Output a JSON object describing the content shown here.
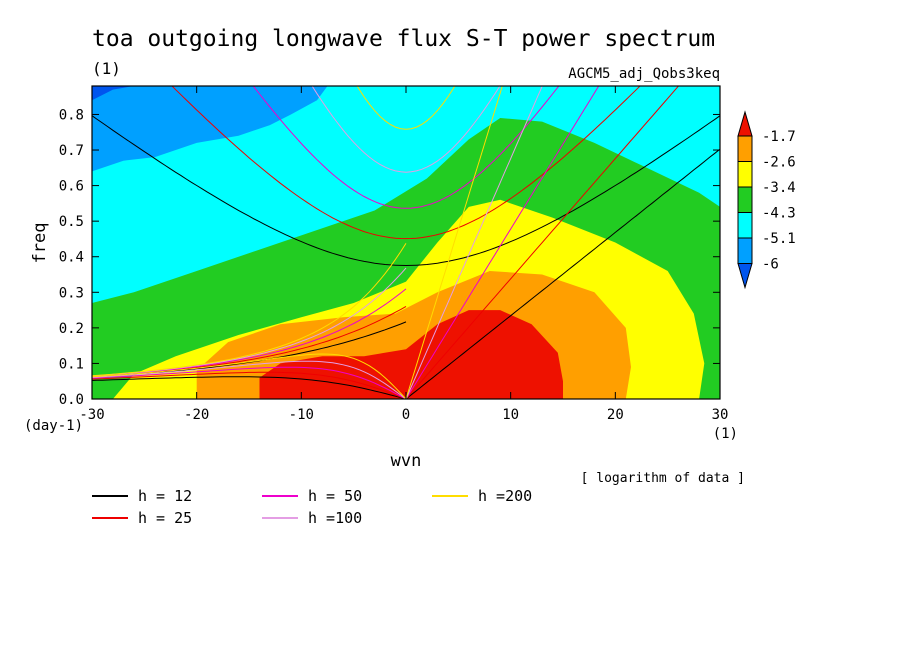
{
  "chart_data": {
    "type": "heatmap",
    "title": "toa outgoing longwave flux S-T power spectrum",
    "title_units": "(1)",
    "subtitle_right": "AGCM5_adj_Qobs3keq",
    "xlabel": "wvn",
    "ylabel": "freq",
    "x_unit_label": "(1)",
    "y_unit_label": "(day-1)",
    "xlim": [
      -30,
      30
    ],
    "ylim": [
      0,
      0.88
    ],
    "x_ticks": [
      -30,
      -20,
      -10,
      0,
      10,
      20,
      30
    ],
    "x_tick_labels": [
      "-30",
      "-20",
      "-10",
      "0",
      "10",
      "20",
      "30"
    ],
    "y_ticks": [
      0.0,
      0.1,
      0.2,
      0.3,
      0.4,
      0.5,
      0.6,
      0.7,
      0.8
    ],
    "y_tick_labels": [
      "0.0",
      "0.1",
      "0.2",
      "0.3",
      "0.4",
      "0.5",
      "0.6",
      "0.7",
      "0.8"
    ],
    "colorbar": {
      "levels": [
        "-1.7",
        "-2.6",
        "-3.4",
        "-4.3",
        "-5.1",
        "-6"
      ],
      "colors": [
        "#ee1100",
        "#ff9f00",
        "#ffff00",
        "#22cc22",
        "#00ffff",
        "#00a0ff",
        "#0055ee"
      ],
      "note": "[ logarithm of data ]"
    },
    "regions": [
      {
        "level": "> -4.3",
        "color": "#22cc22",
        "boundary": [
          [
            -30,
            0.27
          ],
          [
            -26,
            0.3
          ],
          [
            -20,
            0.36
          ],
          [
            -14,
            0.42
          ],
          [
            -8,
            0.48
          ],
          [
            -3,
            0.53
          ],
          [
            2,
            0.62
          ],
          [
            6,
            0.73
          ],
          [
            9,
            0.79
          ],
          [
            13,
            0.78
          ],
          [
            18,
            0.72
          ],
          [
            23,
            0.65
          ],
          [
            28,
            0.58
          ],
          [
            30,
            0.54
          ],
          [
            30,
            0
          ],
          [
            -30,
            0
          ]
        ]
      },
      {
        "level": "> -3.4",
        "color": "#ffff00",
        "boundary": [
          [
            -30,
            0.04
          ],
          [
            -28,
            0.0
          ],
          [
            -30,
            0.0
          ]
        ],
        "boundary_main": [
          [
            -28,
            0
          ],
          [
            -26,
            0.07
          ],
          [
            -22,
            0.12
          ],
          [
            -16,
            0.18
          ],
          [
            -10,
            0.23
          ],
          [
            -5,
            0.27
          ],
          [
            0,
            0.33
          ],
          [
            3,
            0.44
          ],
          [
            6,
            0.54
          ],
          [
            9,
            0.56
          ],
          [
            14,
            0.51
          ],
          [
            20,
            0.44
          ],
          [
            25,
            0.36
          ],
          [
            27.5,
            0.24
          ],
          [
            28.5,
            0.1
          ],
          [
            28,
            0
          ]
        ]
      },
      {
        "level": "> -2.6",
        "color": "#ff9f00",
        "boundary": [
          [
            -20,
            0
          ],
          [
            -20,
            0.08
          ],
          [
            -17,
            0.16
          ],
          [
            -12,
            0.21
          ],
          [
            -6,
            0.23
          ],
          [
            -1,
            0.24
          ],
          [
            3,
            0.3
          ],
          [
            8,
            0.36
          ],
          [
            13,
            0.35
          ],
          [
            18,
            0.3
          ],
          [
            21,
            0.2
          ],
          [
            21.5,
            0.09
          ],
          [
            21,
            0
          ]
        ]
      },
      {
        "level": "> -1.7",
        "color": "#ee1100",
        "boundary": [
          [
            -14,
            0
          ],
          [
            -14,
            0.06
          ],
          [
            -12,
            0.1
          ],
          [
            -8,
            0.12
          ],
          [
            -4,
            0.12
          ],
          [
            0,
            0.14
          ],
          [
            3,
            0.21
          ],
          [
            6,
            0.25
          ],
          [
            9,
            0.25
          ],
          [
            12,
            0.21
          ],
          [
            14.5,
            0.13
          ],
          [
            15,
            0.05
          ],
          [
            15,
            0
          ]
        ]
      },
      {
        "level": "< -5.1",
        "color": "#00a0ff",
        "boundary": [
          [
            -30,
            0.88
          ],
          [
            -30,
            0.64
          ],
          [
            -27,
            0.67
          ],
          [
            -24,
            0.68
          ],
          [
            -20,
            0.72
          ],
          [
            -16,
            0.74
          ],
          [
            -13,
            0.77
          ],
          [
            -11,
            0.8
          ],
          [
            -8.5,
            0.84
          ],
          [
            -7.5,
            0.88
          ]
        ]
      },
      {
        "level": "< -6",
        "color": "#0055ee",
        "boundary": [
          [
            -30,
            0.88
          ],
          [
            -30,
            0.84
          ],
          [
            -28,
            0.87
          ],
          [
            -26,
            0.88
          ]
        ]
      }
    ],
    "series": [
      {
        "name": "h = 12",
        "color": "#000000"
      },
      {
        "name": "h = 25",
        "color": "#ee0000"
      },
      {
        "name": "h = 50",
        "color": "#ee00cc"
      },
      {
        "name": "h =100",
        "color": "#e49ee4"
      },
      {
        "name": "h =200",
        "color": "#ffdd00"
      }
    ]
  }
}
